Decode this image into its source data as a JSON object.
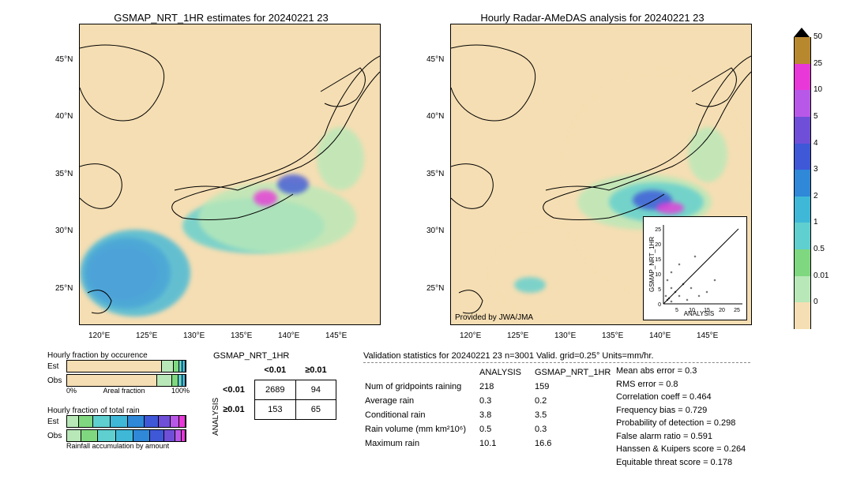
{
  "date_stamp": "20240221 23",
  "map_left": {
    "title": "GSMAP_NRT_1HR estimates for 20240221 23",
    "xlim": [
      118,
      150
    ],
    "ylim": [
      22,
      48
    ],
    "xticks": [
      "120°E",
      "125°E",
      "130°E",
      "135°E",
      "140°E",
      "145°E"
    ],
    "yticks": [
      "25°N",
      "30°N",
      "35°N",
      "40°N",
      "45°N"
    ]
  },
  "map_right": {
    "title": "Hourly Radar-AMeDAS analysis for 20240221 23",
    "xlim": [
      118,
      150
    ],
    "ylim": [
      22,
      48
    ],
    "xticks": [
      "120°E",
      "125°E",
      "130°E",
      "135°E",
      "140°E",
      "145°E"
    ],
    "yticks": [
      "25°N",
      "30°N",
      "35°N",
      "40°N",
      "45°N"
    ],
    "attribution": "Provided by JWA/JMA"
  },
  "scatter_inset": {
    "xlabel": "ANALYSIS",
    "ylabel": "GSMAP_NRT_1HR",
    "xlim": [
      0,
      25
    ],
    "ylim": [
      0,
      25
    ],
    "ticks": [
      0,
      5,
      10,
      15,
      20,
      25
    ]
  },
  "colorbar": {
    "levels": [
      0,
      0.01,
      0.5,
      1,
      2,
      3,
      4,
      5,
      10,
      25,
      50
    ],
    "colors": [
      "#f5deb3",
      "#b8e8b8",
      "#7fd87f",
      "#5fcfcf",
      "#3fb8d8",
      "#2f88d8",
      "#3f58d8",
      "#6f4fd8",
      "#b858e8",
      "#e838d8",
      "#b8882f"
    ],
    "tick_labels": [
      "0",
      "0.01",
      "0.5",
      "1",
      "2",
      "3",
      "4",
      "5",
      "10",
      "25",
      "50"
    ]
  },
  "occurrence_chart": {
    "title": "Hourly fraction by occurence",
    "rows": [
      "Est",
      "Obs"
    ],
    "xaxis": [
      "0%",
      "Areal fraction",
      "100%"
    ],
    "est_segs": [
      {
        "w": 82,
        "c": "#f5deb3"
      },
      {
        "w": 10,
        "c": "#b8e8b8"
      },
      {
        "w": 4,
        "c": "#7fd87f"
      },
      {
        "w": 2,
        "c": "#5fcfcf"
      },
      {
        "w": 2,
        "c": "#3fb8d8"
      }
    ],
    "obs_segs": [
      {
        "w": 78,
        "c": "#f5deb3"
      },
      {
        "w": 12,
        "c": "#b8e8b8"
      },
      {
        "w": 5,
        "c": "#7fd87f"
      },
      {
        "w": 3,
        "c": "#5fcfcf"
      },
      {
        "w": 2,
        "c": "#3fb8d8"
      }
    ]
  },
  "totalrain_chart": {
    "title": "Hourly fraction of total rain",
    "subtitle": "Rainfall accumulation by amount",
    "rows": [
      "Est",
      "Obs"
    ],
    "est_segs": [
      {
        "w": 10,
        "c": "#b8e8b8"
      },
      {
        "w": 12,
        "c": "#7fd87f"
      },
      {
        "w": 15,
        "c": "#5fcfcf"
      },
      {
        "w": 15,
        "c": "#3fb8d8"
      },
      {
        "w": 14,
        "c": "#2f88d8"
      },
      {
        "w": 12,
        "c": "#3f58d8"
      },
      {
        "w": 10,
        "c": "#6f4fd8"
      },
      {
        "w": 7,
        "c": "#b858e8"
      },
      {
        "w": 5,
        "c": "#e838d8"
      }
    ],
    "obs_segs": [
      {
        "w": 12,
        "c": "#b8e8b8"
      },
      {
        "w": 14,
        "c": "#7fd87f"
      },
      {
        "w": 16,
        "c": "#5fcfcf"
      },
      {
        "w": 15,
        "c": "#3fb8d8"
      },
      {
        "w": 14,
        "c": "#2f88d8"
      },
      {
        "w": 12,
        "c": "#3f58d8"
      },
      {
        "w": 9,
        "c": "#6f4fd8"
      },
      {
        "w": 5,
        "c": "#b858e8"
      },
      {
        "w": 3,
        "c": "#e838d8"
      }
    ]
  },
  "contingency": {
    "col_header": "GSMAP_NRT_1HR",
    "row_header": "ANALYSIS",
    "col_labels": [
      "<0.01",
      "≥0.01"
    ],
    "row_labels": [
      "<0.01",
      "≥0.01"
    ],
    "cells": [
      [
        2689,
        94
      ],
      [
        153,
        65
      ]
    ]
  },
  "validation": {
    "title": "Validation statistics for 20240221 23  n=3001 Valid. grid=0.25° Units=mm/hr.",
    "col_headers": [
      "ANALYSIS",
      "GSMAP_NRT_1HR"
    ],
    "rows": [
      {
        "label": "Num of gridpoints raining",
        "a": "218",
        "g": "159"
      },
      {
        "label": "Average rain",
        "a": "0.3",
        "g": "0.2"
      },
      {
        "label": "Conditional rain",
        "a": "3.8",
        "g": "3.5"
      },
      {
        "label": "Rain volume (mm km²10⁶)",
        "a": "0.5",
        "g": "0.3"
      },
      {
        "label": "Maximum rain",
        "a": "10.1",
        "g": "16.6"
      }
    ],
    "metrics": [
      {
        "label": "Mean abs error =",
        "v": "0.3"
      },
      {
        "label": "RMS error =",
        "v": "0.8"
      },
      {
        "label": "Correlation coeff =",
        "v": "0.464"
      },
      {
        "label": "Frequency bias =",
        "v": "0.729"
      },
      {
        "label": "Probability of detection =",
        "v": "0.298"
      },
      {
        "label": "False alarm ratio =",
        "v": "0.591"
      },
      {
        "label": "Hanssen & Kuipers score =",
        "v": "0.264"
      },
      {
        "label": "Equitable threat score =",
        "v": "0.178"
      }
    ]
  }
}
